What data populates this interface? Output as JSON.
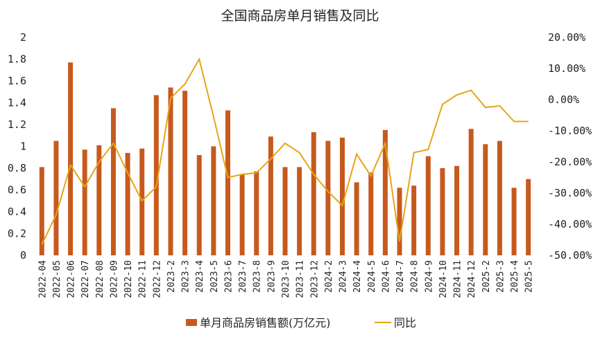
{
  "chart_data": {
    "type": "bar",
    "title": "全国商品房单月销售及同比",
    "categories": [
      "2022-04",
      "2022-05",
      "2022-06",
      "2022-07",
      "2022-08",
      "2022-09",
      "2022-10",
      "2022-11",
      "2022-12",
      "2023-2",
      "2023-3",
      "2023-4",
      "2023-5",
      "2023-6",
      "2023-7",
      "2023-8",
      "2023-9",
      "2023-10",
      "2023-11",
      "2023-12",
      "2024-2",
      "2024-3",
      "2024-4",
      "2024-5",
      "2024-6",
      "2024-7",
      "2024-8",
      "2024-9",
      "2024-10",
      "2024-11",
      "2024-12",
      "2025-2",
      "2025-3",
      "2025-4",
      "2025-5"
    ],
    "series": [
      {
        "name": "单月商品房销售额(万亿元)",
        "type": "bar",
        "axis": "left",
        "color": "#C65A1E",
        "values": [
          0.81,
          1.05,
          1.77,
          0.97,
          1.01,
          1.35,
          0.94,
          0.98,
          1.47,
          1.54,
          1.51,
          0.92,
          1.0,
          1.33,
          0.74,
          0.77,
          1.09,
          0.81,
          0.81,
          1.13,
          1.05,
          1.08,
          0.67,
          0.76,
          1.15,
          0.62,
          0.64,
          0.91,
          0.8,
          0.82,
          1.16,
          1.02,
          1.05,
          0.62,
          0.7
        ]
      },
      {
        "name": "同比",
        "type": "line",
        "axis": "right",
        "color": "#E8A317",
        "values": [
          -46.5,
          -37.0,
          -21.0,
          -28.0,
          -20.0,
          -14.0,
          -23.5,
          -32.5,
          -28.0,
          0.5,
          5.0,
          13.0,
          -5.5,
          -25.0,
          -24.0,
          -23.5,
          -19.0,
          -14.0,
          -17.0,
          -24.0,
          -29.5,
          -34.0,
          -17.5,
          -24.5,
          -14.0,
          -45.5,
          -17.0,
          -16.0,
          -1.5,
          1.5,
          3.0,
          -2.5,
          -2.0,
          -7.0,
          -7.0
        ]
      }
    ],
    "yticks_left": [
      "2",
      "1.8",
      "1.6",
      "1.4",
      "1.2",
      "1",
      "0.8",
      "0.6",
      "0.4",
      "0.2",
      "0"
    ],
    "ylim_left": [
      0,
      2
    ],
    "yticks_right": [
      "20.00%",
      "10.00%",
      "0.00%",
      "-10.00%",
      "-20.00%",
      "-30.00%",
      "-40.00%",
      "-50.00%"
    ],
    "ylim_right": [
      -50,
      20
    ],
    "grid": false,
    "legend_position": "bottom"
  }
}
